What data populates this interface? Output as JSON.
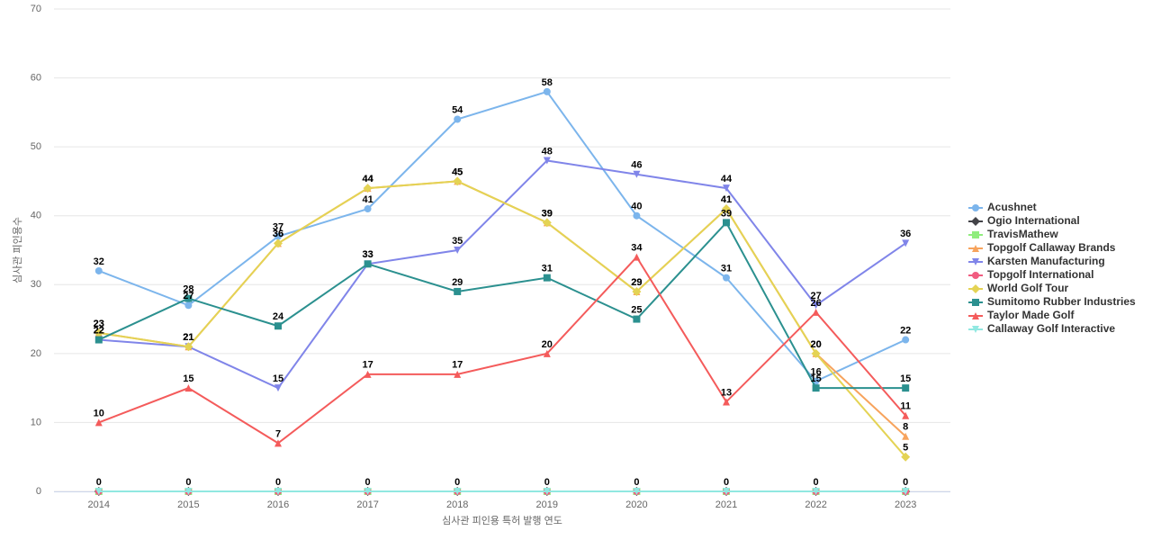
{
  "chart_data": {
    "type": "line",
    "x_label": "심사관 피인용 특허 발행 연도",
    "y_label": "심사관 피인용수",
    "categories": [
      "2014",
      "2015",
      "2016",
      "2017",
      "2018",
      "2019",
      "2020",
      "2021",
      "2022",
      "2023"
    ],
    "ylim": [
      0,
      70
    ],
    "yticks": [
      0,
      10,
      20,
      30,
      40,
      50,
      60,
      70
    ],
    "grid": true,
    "legend": "right",
    "series": [
      {
        "name": "Acushnet",
        "color": "#7cb5ec",
        "marker": "circle",
        "show_labels": true,
        "values": [
          32,
          27,
          37,
          41,
          54,
          58,
          40,
          31,
          16,
          22
        ]
      },
      {
        "name": "Ogio International",
        "color": "#434348",
        "marker": "diamond",
        "show_labels": false,
        "values": [
          0,
          0,
          0,
          0,
          0,
          0,
          0,
          0,
          0,
          0
        ]
      },
      {
        "name": "TravisMathew",
        "color": "#90ed7d",
        "marker": "square",
        "show_labels": false,
        "values": [
          0,
          0,
          0,
          0,
          0,
          0,
          0,
          0,
          0,
          0
        ]
      },
      {
        "name": "Topgolf Callaway Brands",
        "color": "#f7a35c",
        "marker": "triangle",
        "show_labels": true,
        "values": [
          23,
          21,
          36,
          44,
          45,
          39,
          29,
          41,
          20,
          8
        ]
      },
      {
        "name": "Karsten Manufacturing",
        "color": "#8085e9",
        "marker": "triangle-down",
        "show_labels": true,
        "values": [
          22,
          21,
          15,
          33,
          35,
          48,
          46,
          44,
          27,
          36
        ]
      },
      {
        "name": "Topgolf International",
        "color": "#f15c80",
        "marker": "circle",
        "show_labels": false,
        "values": [
          0,
          0,
          0,
          0,
          0,
          0,
          0,
          0,
          0,
          0
        ]
      },
      {
        "name": "World Golf Tour",
        "color": "#e4d354",
        "marker": "diamond",
        "show_labels": true,
        "values": [
          23,
          21,
          36,
          44,
          45,
          39,
          29,
          41,
          20,
          5
        ]
      },
      {
        "name": "Sumitomo Rubber Industries",
        "color": "#2b908f",
        "marker": "square",
        "show_labels": true,
        "values": [
          22,
          28,
          24,
          33,
          29,
          31,
          25,
          39,
          15,
          15
        ]
      },
      {
        "name": "Taylor Made Golf",
        "color": "#f45b5b",
        "marker": "triangle",
        "show_labels": true,
        "values": [
          10,
          15,
          7,
          17,
          17,
          20,
          34,
          13,
          26,
          11
        ]
      },
      {
        "name": "Callaway Golf Interactive",
        "color": "#91e8e1",
        "marker": "triangle-down",
        "show_labels": true,
        "values": [
          0,
          0,
          0,
          0,
          0,
          0,
          0,
          0,
          0,
          0
        ]
      }
    ]
  }
}
